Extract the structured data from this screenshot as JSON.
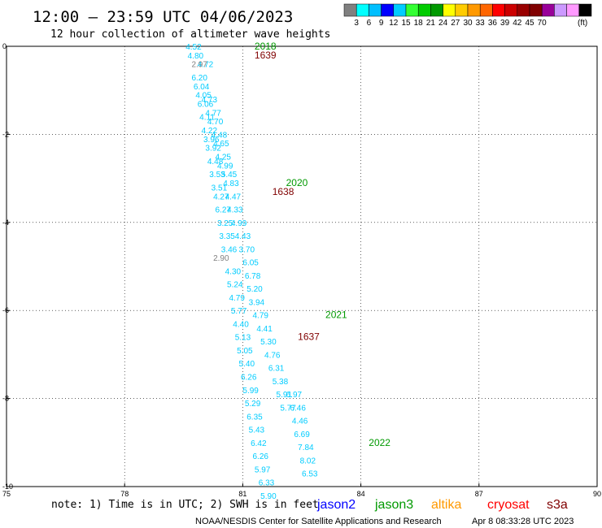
{
  "header": {
    "title": "12:00 – 23:59 UTC 04/06/2023",
    "subtitle": "12 hour collection of altimeter wave heights"
  },
  "colorbar": {
    "unit": "(ft)",
    "colors": [
      "#808080",
      "#00ffff",
      "#00bfff",
      "#0000ff",
      "#00ccff",
      "#33ff33",
      "#00cc00",
      "#009900",
      "#ffff00",
      "#ffcc00",
      "#ff9900",
      "#ff6600",
      "#ff0000",
      "#cc0000",
      "#990000",
      "#800000",
      "#990099",
      "#cc99ff",
      "#ff99ff",
      "#000000"
    ],
    "labels": [
      "3",
      "6",
      "9",
      "12",
      "15",
      "18",
      "21",
      "24",
      "27",
      "30",
      "33",
      "36",
      "39",
      "42",
      "45",
      "70"
    ]
  },
  "footer": {
    "note": "note: 1) Time is in UTC; 2) SWH is in feet",
    "credit": "NOAA/NESDIS Center for Satellite Applications and Research",
    "timestamp": "Apr  8 08:33:28 UTC 2023",
    "legend": [
      {
        "name": "jason2",
        "color": "#0000ff"
      },
      {
        "name": "jason3",
        "color": "#009900"
      },
      {
        "name": "altika",
        "color": "#ff9900"
      },
      {
        "name": "cryosat",
        "color": "#ff0000"
      },
      {
        "name": "s3a",
        "color": "#800000"
      }
    ]
  },
  "chart_data": {
    "type": "scatter",
    "xlim": [
      75,
      90
    ],
    "ylim": [
      -10,
      0
    ],
    "x_ticks": [
      "75",
      "78",
      "81",
      "84",
      "87",
      "90"
    ],
    "y_ticks": [
      "0",
      "-2",
      "-4",
      "-6",
      "-8",
      "-10"
    ],
    "grid": true,
    "time_labels": [
      {
        "text": "2018",
        "x": 81.3,
        "y": 0.0,
        "color": "#009900"
      },
      {
        "text": "1639",
        "x": 81.3,
        "y": -0.2,
        "color": "#800000"
      },
      {
        "text": "2020",
        "x": 82.1,
        "y": -3.1,
        "color": "#009900"
      },
      {
        "text": "1638",
        "x": 81.75,
        "y": -3.3,
        "color": "#800000"
      },
      {
        "text": "2021",
        "x": 83.1,
        "y": -6.1,
        "color": "#009900"
      },
      {
        "text": "1637",
        "x": 82.4,
        "y": -6.6,
        "color": "#800000"
      },
      {
        "text": "2022",
        "x": 84.2,
        "y": -9.0,
        "color": "#009900"
      }
    ],
    "series": [
      {
        "color": "#00ccff",
        "points": [
          {
            "x": 79.55,
            "y": 0.0,
            "v": "4.52"
          },
          {
            "x": 79.6,
            "y": -0.2,
            "v": "4.80"
          },
          {
            "x": 79.7,
            "y": -0.7,
            "v": "6.20"
          },
          {
            "x": 79.75,
            "y": -0.9,
            "v": "6.04"
          },
          {
            "x": 79.8,
            "y": -1.1,
            "v": "4.05"
          },
          {
            "x": 79.85,
            "y": -1.3,
            "v": "6.06"
          },
          {
            "x": 79.9,
            "y": -1.6,
            "v": "4.11"
          },
          {
            "x": 79.95,
            "y": -1.9,
            "v": "4.22"
          },
          {
            "x": 80.0,
            "y": -2.1,
            "v": "3.96"
          },
          {
            "x": 80.05,
            "y": -2.3,
            "v": "3.92"
          },
          {
            "x": 80.1,
            "y": -2.6,
            "v": "4.48"
          },
          {
            "x": 80.15,
            "y": -2.9,
            "v": "3.53"
          },
          {
            "x": 80.2,
            "y": -3.2,
            "v": "3.51"
          },
          {
            "x": 80.25,
            "y": -3.4,
            "v": "4.27"
          },
          {
            "x": 80.3,
            "y": -3.7,
            "v": "6.27"
          },
          {
            "x": 80.35,
            "y": -4.0,
            "v": "3.25"
          },
          {
            "x": 80.4,
            "y": -4.3,
            "v": "3.35"
          },
          {
            "x": 80.45,
            "y": -4.6,
            "v": "3.46"
          },
          {
            "x": 80.55,
            "y": -5.1,
            "v": "4.30"
          },
          {
            "x": 80.6,
            "y": -5.4,
            "v": "5.24"
          },
          {
            "x": 80.65,
            "y": -5.7,
            "v": "4.79"
          },
          {
            "x": 80.7,
            "y": -6.0,
            "v": "5.77"
          },
          {
            "x": 80.75,
            "y": -6.3,
            "v": "4.40"
          },
          {
            "x": 80.8,
            "y": -6.6,
            "v": "5.13"
          },
          {
            "x": 80.85,
            "y": -6.9,
            "v": "5.05"
          },
          {
            "x": 80.9,
            "y": -7.2,
            "v": "5.40"
          },
          {
            "x": 80.95,
            "y": -7.5,
            "v": "6.26"
          },
          {
            "x": 81.0,
            "y": -7.8,
            "v": "5.99"
          },
          {
            "x": 81.05,
            "y": -8.1,
            "v": "5.29"
          },
          {
            "x": 81.1,
            "y": -8.4,
            "v": "6.35"
          },
          {
            "x": 81.15,
            "y": -8.7,
            "v": "5.43"
          },
          {
            "x": 81.2,
            "y": -9.0,
            "v": "6.42"
          },
          {
            "x": 81.25,
            "y": -9.3,
            "v": "6.26"
          },
          {
            "x": 81.3,
            "y": -9.6,
            "v": "5.97"
          }
        ]
      },
      {
        "color": "#00ccff",
        "points": [
          {
            "x": 79.85,
            "y": -0.4,
            "v": "4.72"
          },
          {
            "x": 79.95,
            "y": -1.2,
            "v": "4.73"
          },
          {
            "x": 80.05,
            "y": -1.5,
            "v": "4.77"
          },
          {
            "x": 80.1,
            "y": -1.7,
            "v": "4.70"
          },
          {
            "x": 80.2,
            "y": -2.0,
            "v": "4.48"
          },
          {
            "x": 80.25,
            "y": -2.2,
            "v": "4.65"
          },
          {
            "x": 80.3,
            "y": -2.5,
            "v": "4.25"
          },
          {
            "x": 80.35,
            "y": -2.7,
            "v": "4.99"
          },
          {
            "x": 80.45,
            "y": -2.9,
            "v": "5.45"
          },
          {
            "x": 80.5,
            "y": -3.1,
            "v": "4.83"
          },
          {
            "x": 80.55,
            "y": -3.4,
            "v": "4.47"
          },
          {
            "x": 80.6,
            "y": -3.7,
            "v": "4.33"
          },
          {
            "x": 80.7,
            "y": -4.0,
            "v": "4.99"
          },
          {
            "x": 80.8,
            "y": -4.3,
            "v": "4.43"
          },
          {
            "x": 80.9,
            "y": -4.6,
            "v": "3.70"
          },
          {
            "x": 81.0,
            "y": -4.9,
            "v": "6.05"
          },
          {
            "x": 81.05,
            "y": -5.2,
            "v": "6.78"
          },
          {
            "x": 81.1,
            "y": -5.5,
            "v": "5.20"
          },
          {
            "x": 81.15,
            "y": -5.8,
            "v": "3.94"
          },
          {
            "x": 81.25,
            "y": -6.1,
            "v": "4.79"
          },
          {
            "x": 81.35,
            "y": -6.4,
            "v": "4.41"
          },
          {
            "x": 81.45,
            "y": -6.7,
            "v": "5.30"
          },
          {
            "x": 81.55,
            "y": -7.0,
            "v": "4.76"
          },
          {
            "x": 81.65,
            "y": -7.3,
            "v": "6.31"
          },
          {
            "x": 81.75,
            "y": -7.6,
            "v": "5.38"
          },
          {
            "x": 81.85,
            "y": -7.9,
            "v": "5.91"
          },
          {
            "x": 81.95,
            "y": -8.2,
            "v": "5.77"
          }
        ]
      },
      {
        "color": "#00ccff",
        "points": [
          {
            "x": 82.1,
            "y": -7.9,
            "v": "6.97"
          },
          {
            "x": 82.2,
            "y": -8.2,
            "v": "6.46"
          },
          {
            "x": 82.25,
            "y": -8.5,
            "v": "4.46"
          },
          {
            "x": 82.3,
            "y": -8.8,
            "v": "6.69"
          },
          {
            "x": 82.4,
            "y": -9.1,
            "v": "7.84"
          },
          {
            "x": 82.45,
            "y": -9.4,
            "v": "8.02"
          },
          {
            "x": 82.5,
            "y": -9.7,
            "v": "6.53"
          }
        ]
      },
      {
        "color": "#00ccff",
        "points": [
          {
            "x": 81.4,
            "y": -9.9,
            "v": "6.33"
          },
          {
            "x": 81.45,
            "y": -10.2,
            "v": "5.90"
          }
        ]
      },
      {
        "color": "#808080",
        "points": [
          {
            "x": 79.7,
            "y": -0.4,
            "v": "2.97"
          },
          {
            "x": 80.25,
            "y": -4.8,
            "v": "2.90"
          }
        ]
      }
    ]
  }
}
